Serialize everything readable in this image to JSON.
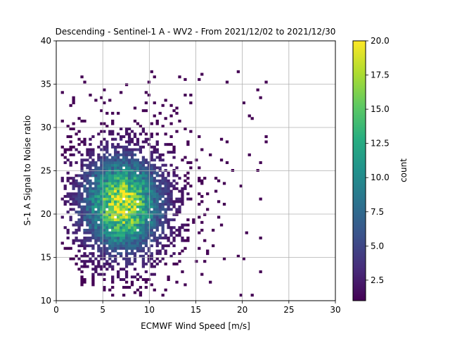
{
  "chart_data": {
    "type": "heatmap",
    "title": "Descending - Sentinel-1 A - WV2 - From 2021/12/02 to 2021/12/30",
    "xlabel": "ECMWF Wind Speed [m/s]",
    "ylabel": "S-1 A Signal to Noise ratio",
    "xlim": [
      0,
      30
    ],
    "ylim": [
      10,
      40
    ],
    "xticks": [
      "0",
      "5",
      "10",
      "15",
      "20",
      "25",
      "30"
    ],
    "yticks": [
      "10",
      "15",
      "20",
      "25",
      "30",
      "35",
      "40"
    ],
    "grid": true,
    "colormap": "viridis",
    "colorbar": {
      "label": "count",
      "range": [
        1,
        20
      ],
      "ticks": [
        "2.5",
        "5.0",
        "7.5",
        "10.0",
        "12.5",
        "15.0",
        "17.5",
        "20.0"
      ]
    },
    "bin_size": {
      "x": 0.3,
      "y": 0.3
    },
    "density_peak": {
      "x": 7.0,
      "y": 21.0,
      "max_count": 20
    },
    "cluster_extent": {
      "x": [
        0.5,
        22.5
      ],
      "y": [
        10.5,
        36.5
      ]
    }
  }
}
